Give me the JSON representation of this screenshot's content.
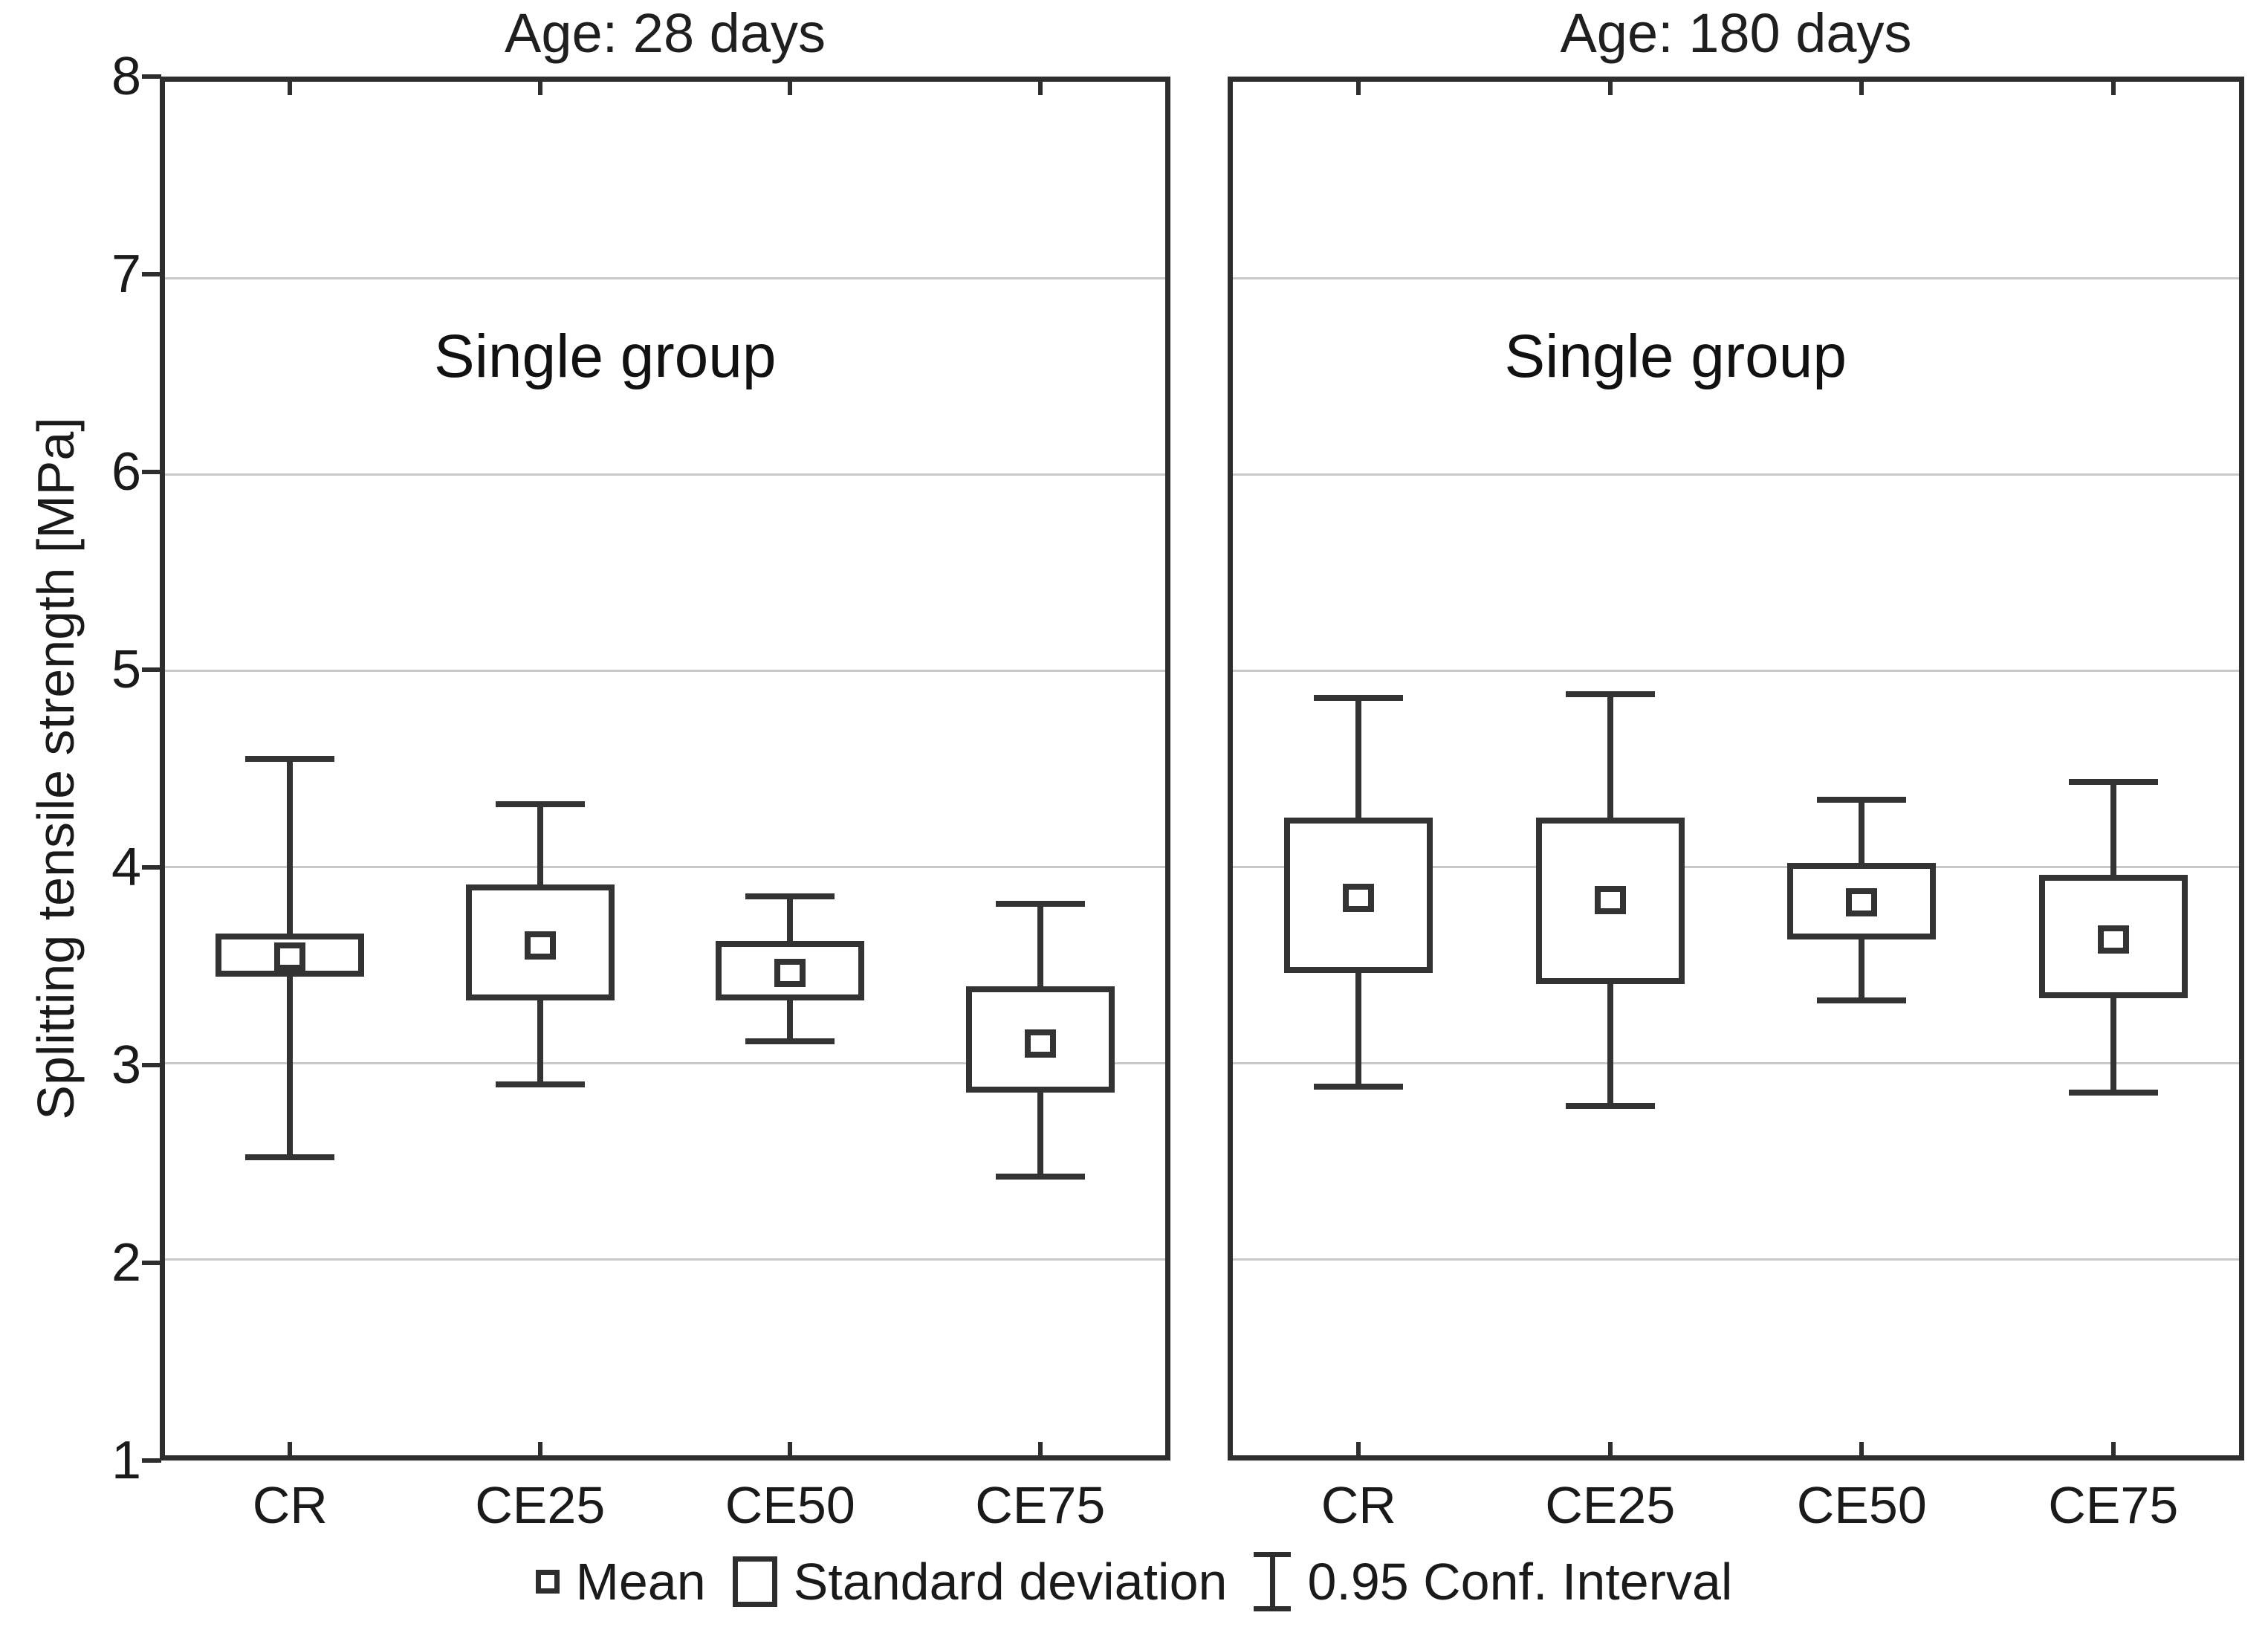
{
  "chart_data": {
    "type": "box",
    "ylabel": "Splitting tensile strength [MPa]",
    "ylim": [
      1,
      8
    ],
    "y_ticks": [
      8,
      7,
      6,
      5,
      4,
      3,
      2,
      1
    ],
    "gridline_values": [
      7,
      6,
      5,
      4,
      3,
      2
    ],
    "grid": "horizontal gridlines at integer values, light gray",
    "categories": [
      "CR",
      "CE25",
      "CE50",
      "CE75"
    ],
    "legend_position": "bottom",
    "legend": [
      "Mean",
      "Standard deviation",
      "0.95 Conf. Interval"
    ],
    "panels": [
      {
        "title": "Age: 28 days",
        "annotation": "Single group",
        "boxes": [
          {
            "category": "CR",
            "mean": 3.54,
            "sd_low": 3.44,
            "sd_high": 3.66,
            "ci_low": 2.52,
            "ci_high": 4.55
          },
          {
            "category": "CE25",
            "mean": 3.6,
            "sd_low": 3.32,
            "sd_high": 3.91,
            "ci_low": 2.89,
            "ci_high": 4.32
          },
          {
            "category": "CE50",
            "mean": 3.46,
            "sd_low": 3.32,
            "sd_high": 3.62,
            "ci_low": 3.11,
            "ci_high": 3.85
          },
          {
            "category": "CE75",
            "mean": 3.1,
            "sd_low": 2.85,
            "sd_high": 3.39,
            "ci_low": 2.42,
            "ci_high": 3.81
          }
        ]
      },
      {
        "title": "Age: 180 days",
        "annotation": "Single group",
        "boxes": [
          {
            "category": "CR",
            "mean": 3.84,
            "sd_low": 3.46,
            "sd_high": 4.25,
            "ci_low": 2.88,
            "ci_high": 4.86
          },
          {
            "category": "CE25",
            "mean": 3.83,
            "sd_low": 3.4,
            "sd_high": 4.25,
            "ci_low": 2.78,
            "ci_high": 4.88
          },
          {
            "category": "CE50",
            "mean": 3.82,
            "sd_low": 3.63,
            "sd_high": 4.02,
            "ci_low": 3.32,
            "ci_high": 4.34
          },
          {
            "category": "CE75",
            "mean": 3.63,
            "sd_low": 3.33,
            "sd_high": 3.96,
            "ci_low": 2.85,
            "ci_high": 4.43
          }
        ]
      }
    ]
  }
}
